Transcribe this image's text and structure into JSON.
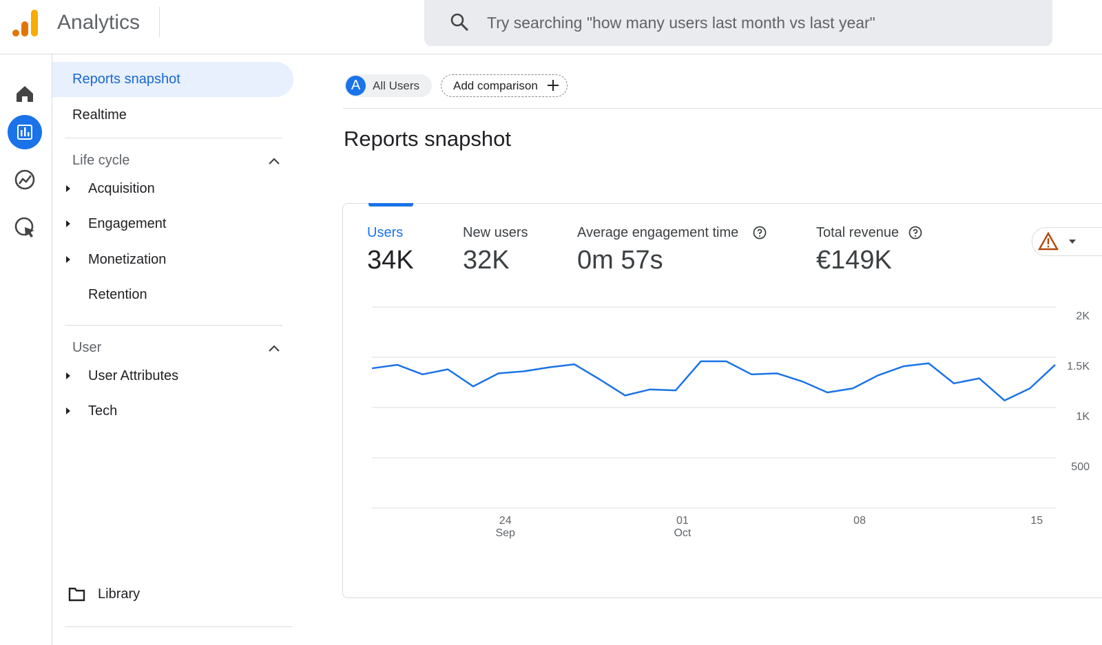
{
  "header": {
    "title": "Analytics",
    "search_placeholder": "Try searching \"how many users last month vs last year\""
  },
  "nav": {
    "top_items": [
      "Reports snapshot",
      "Realtime"
    ],
    "sections": [
      {
        "title": "Life cycle",
        "items": [
          {
            "label": "Acquisition",
            "expandable": true
          },
          {
            "label": "Engagement",
            "expandable": true
          },
          {
            "label": "Monetization",
            "expandable": true
          },
          {
            "label": "Retention",
            "expandable": false
          }
        ]
      },
      {
        "title": "User",
        "items": [
          {
            "label": "User Attributes",
            "expandable": true
          },
          {
            "label": "Tech",
            "expandable": true
          }
        ]
      }
    ],
    "library": "Library"
  },
  "comparison": {
    "badge": "A",
    "segment": "All Users",
    "add": "Add comparison"
  },
  "page_title": "Reports snapshot",
  "metrics": [
    {
      "label": "Users",
      "value": "34K"
    },
    {
      "label": "New users",
      "value": "32K"
    },
    {
      "label": "Average engagement time",
      "value": "0m 57s"
    },
    {
      "label": "Total revenue",
      "value": "€149K"
    }
  ],
  "chart_data": {
    "type": "line",
    "color": "#1a73e8",
    "categories": [
      null,
      null,
      null,
      null,
      null,
      "24 Sep",
      null,
      null,
      null,
      null,
      null,
      null,
      "01 Oct",
      null,
      null,
      null,
      null,
      null,
      null,
      "08",
      null,
      null,
      null,
      null,
      null,
      null,
      "15",
      null
    ],
    "values": [
      1390,
      1425,
      1330,
      1380,
      1210,
      1340,
      1360,
      1400,
      1430,
      1280,
      1120,
      1180,
      1170,
      1460,
      1460,
      1330,
      1340,
      1260,
      1150,
      1190,
      1320,
      1410,
      1440,
      1240,
      1290,
      1070,
      1190,
      1425
    ],
    "ylim": [
      0,
      2000
    ],
    "yticks": [
      {
        "value": 500,
        "label": "500"
      },
      {
        "value": 1000,
        "label": "1K"
      },
      {
        "value": 1500,
        "label": "1.5K"
      },
      {
        "value": 2000,
        "label": "2K"
      }
    ],
    "grid": true
  }
}
